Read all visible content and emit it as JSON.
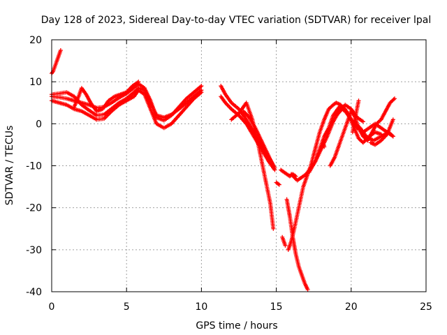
{
  "chart_data": {
    "type": "scatter",
    "title": "Day 128 of 2023, Sidereal Day-to-day VTEC variation (SDTVAR) for receiver lpal",
    "xlabel": "GPS time / hours",
    "ylabel": "SDTVAR / TECUs",
    "xlim": [
      0,
      25
    ],
    "ylim": [
      -40,
      20
    ],
    "xticks": [
      "0",
      "5",
      "10",
      "15",
      "20",
      "25"
    ],
    "yticks": [
      "-40",
      "-30",
      "-20",
      "-10",
      "0",
      "10",
      "20"
    ],
    "grid": true,
    "marker": "plus",
    "color": "#ff0000",
    "series": [
      {
        "x": [
          0.0,
          0.1,
          0.2,
          0.3,
          0.4,
          0.5,
          0.6
        ],
        "y": [
          12,
          12.5,
          13.5,
          14.5,
          15.5,
          16.5,
          17.5
        ]
      },
      {
        "x": [
          0.0,
          0.5,
          1.0,
          1.5,
          2.0,
          2.5,
          3.0,
          3.5,
          4.0,
          4.5,
          5.0,
          5.5,
          5.8,
          6.2,
          6.6,
          7.0,
          7.5,
          8.0,
          8.5,
          9.0,
          9.5,
          10.0
        ],
        "y": [
          7,
          7.2,
          7.5,
          6.5,
          4.5,
          3.2,
          2.0,
          2.2,
          3.6,
          5.0,
          6.0,
          7.5,
          8.5,
          8.0,
          5.0,
          2.0,
          1.5,
          2.2,
          3.5,
          5.0,
          6.5,
          8.0
        ]
      },
      {
        "x": [
          0.0,
          0.5,
          1.0,
          1.5,
          2.0,
          2.5,
          3.0,
          3.5,
          4.0,
          4.5,
          5.0,
          5.5,
          5.8,
          6.2,
          6.6,
          7.0,
          7.5,
          8.0,
          8.5,
          9.0,
          9.5,
          10.0
        ],
        "y": [
          5.5,
          5.0,
          4.5,
          3.5,
          3.0,
          2.0,
          1.0,
          1.2,
          3.0,
          4.5,
          5.5,
          6.5,
          8.0,
          7.0,
          3.5,
          0.0,
          -1.0,
          0.0,
          2.0,
          4.0,
          6.0,
          7.5
        ]
      },
      {
        "x": [
          0.0,
          0.5,
          1.0,
          1.5,
          2.0,
          2.5,
          3.0,
          3.5,
          4.0,
          4.5,
          5.0,
          5.5,
          5.8,
          6.2,
          6.6,
          7.0,
          7.5,
          8.0,
          8.5,
          9.0,
          9.5,
          10.0
        ],
        "y": [
          6.5,
          6.3,
          6.0,
          5.5,
          5.0,
          4.5,
          3.8,
          4.0,
          5.0,
          6.2,
          7.2,
          8.6,
          9.5,
          8.5,
          5.5,
          1.5,
          0.8,
          2.0,
          4.0,
          6.0,
          7.5,
          9.0
        ]
      },
      {
        "x": [
          1.5,
          1.8,
          2.0,
          2.3,
          2.6,
          3.0,
          3.4,
          3.8,
          4.2,
          4.6,
          5.0,
          5.4,
          5.8
        ],
        "y": [
          4.0,
          6.5,
          8.5,
          7.0,
          5.0,
          3.0,
          3.5,
          5.5,
          6.5,
          7.0,
          7.5,
          9.0,
          10.0
        ]
      },
      {
        "x": [
          11.3,
          11.6,
          12.0,
          12.5,
          13.0,
          13.5,
          14.0,
          14.5,
          14.9
        ],
        "y": [
          9.0,
          7.0,
          5.0,
          3.5,
          1.0,
          -2.0,
          -5.0,
          -8.0,
          -10.5
        ]
      },
      {
        "x": [
          11.3,
          11.6,
          12.0,
          12.5,
          13.0,
          13.5,
          14.0,
          14.5,
          14.9
        ],
        "y": [
          6.5,
          5.0,
          3.5,
          2.0,
          0.0,
          -3.0,
          -6.0,
          -9.0,
          -11.0
        ]
      },
      {
        "x": [
          12.0,
          12.5,
          13.0,
          13.4,
          13.8,
          14.2,
          14.6,
          14.8
        ],
        "y": [
          1.0,
          2.5,
          5.0,
          1.0,
          -5.0,
          -12.0,
          -19.0,
          -25.0
        ]
      },
      {
        "x": [
          12.8,
          13.2,
          13.6,
          14.0,
          14.4,
          14.8
        ],
        "y": [
          3.0,
          1.5,
          -1.0,
          -4.0,
          -7.0,
          -10.0
        ]
      },
      {
        "x": [
          15.0,
          15.2
        ],
        "y": [
          -14.0,
          -14.5
        ]
      },
      {
        "x": [
          15.3,
          15.5,
          15.7,
          15.9,
          16.1,
          16.3
        ],
        "y": [
          -11.0,
          -11.5,
          -12.0,
          -12.5,
          -12.0,
          -12.5
        ]
      },
      {
        "x": [
          15.4,
          15.6
        ],
        "y": [
          -27.0,
          -29.0
        ]
      },
      {
        "x": [
          15.7,
          15.9,
          16.1,
          16.3,
          16.5,
          16.7,
          16.9,
          17.1
        ],
        "y": [
          -18.0,
          -22.0,
          -27.0,
          -31.0,
          -34.0,
          -36.0,
          -38.0,
          -39.5
        ]
      },
      {
        "x": [
          15.8,
          16.0,
          16.2,
          16.5,
          16.8,
          17.0,
          17.3,
          17.6,
          17.9,
          18.2,
          18.5,
          18.8,
          19.0,
          19.3,
          19.6,
          20.0,
          20.3,
          20.6,
          21.0,
          21.5,
          22.0,
          22.5,
          22.8
        ],
        "y": [
          -30.0,
          -28.0,
          -25.0,
          -20.0,
          -15.0,
          -13.0,
          -10.0,
          -6.0,
          -2.0,
          1.0,
          3.5,
          4.5,
          5.0,
          4.5,
          3.0,
          1.0,
          0.0,
          -1.0,
          -3.0,
          -4.0,
          -3.0,
          -2.0,
          -3.0
        ]
      },
      {
        "x": [
          16.0,
          16.4,
          16.8,
          17.2,
          17.6,
          18.0,
          18.4,
          18.8,
          19.2,
          19.6,
          20.0,
          20.4,
          20.8
        ],
        "y": [
          -12.0,
          -13.5,
          -12.5,
          -11.5,
          -9.0,
          -6.0,
          -3.0,
          0.5,
          3.0,
          4.5,
          3.5,
          1.5,
          0.5
        ]
      },
      {
        "x": [
          17.0,
          17.3,
          17.6,
          17.9,
          18.2,
          18.5,
          18.8,
          19.2,
          19.6,
          20.0,
          20.4,
          20.8,
          21.2,
          21.6,
          22.0,
          22.4,
          22.8
        ],
        "y": [
          -12.0,
          -10.5,
          -9.0,
          -6.0,
          -3.0,
          -1.0,
          2.0,
          4.0,
          3.5,
          1.0,
          -1.0,
          -2.0,
          -1.0,
          0.0,
          -1.0,
          -2.0,
          -3.0
        ]
      },
      {
        "x": [
          18.1,
          18.2
        ],
        "y": [
          -4.0,
          -5.5
        ]
      },
      {
        "x": [
          18.6,
          18.9,
          19.2,
          19.5,
          19.8,
          20.0,
          20.2,
          20.5,
          20.8,
          21.1,
          21.4,
          21.7,
          22.0,
          22.3,
          22.6,
          22.9
        ],
        "y": [
          -10.0,
          -8.0,
          -5.0,
          -2.0,
          1.0,
          3.0,
          2.0,
          -1.0,
          -3.0,
          -4.0,
          -2.0,
          0.0,
          1.0,
          3.0,
          5.0,
          6.0
        ]
      },
      {
        "x": [
          19.0,
          19.4,
          19.8,
          20.2,
          20.5,
          20.8,
          21.2,
          21.6,
          22.0
        ],
        "y": [
          2.0,
          3.5,
          2.5,
          -1.0,
          -3.5,
          -4.5,
          -3.0,
          -2.0,
          -2.5
        ]
      },
      {
        "x": [
          20.1,
          20.3,
          20.5
        ],
        "y": [
          -2.0,
          2.0,
          5.5
        ]
      },
      {
        "x": [
          21.3,
          21.6,
          22.0,
          22.4,
          22.8
        ],
        "y": [
          -4.5,
          -5.0,
          -4.0,
          -2.5,
          1.0
        ]
      }
    ]
  }
}
